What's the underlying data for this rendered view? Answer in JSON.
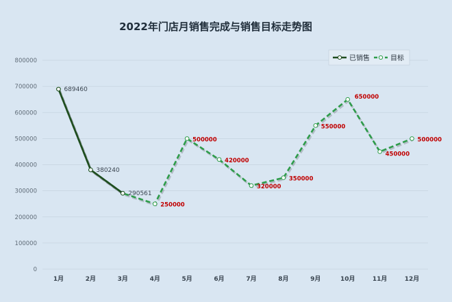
{
  "chart_data": {
    "type": "line",
    "title": "2022年门店月销售完成与销售目标走势图",
    "categories": [
      "1月",
      "2月",
      "3月",
      "4月",
      "5月",
      "6月",
      "7月",
      "8月",
      "9月",
      "10月",
      "11月",
      "12月"
    ],
    "series": [
      {
        "name": "已销售",
        "values": [
          689460,
          380240,
          290561,
          null,
          null,
          null,
          null,
          null,
          null,
          null,
          null,
          null
        ],
        "color": "#1f4d1f",
        "style": "solid",
        "data_labels": [
          "689460",
          "380240",
          "290561"
        ]
      },
      {
        "name": "目标",
        "values": [
          689460,
          380240,
          290561,
          250000,
          500000,
          420000,
          320000,
          350000,
          550000,
          650000,
          450000,
          500000
        ],
        "color": "#2e9c4a",
        "style": "dashed",
        "data_labels": [
          "250000",
          "500000",
          "420000",
          "320000",
          "350000",
          "550000",
          "650000",
          "450000",
          "500000"
        ]
      }
    ],
    "ylim": [
      0,
      800000
    ],
    "yticks": [
      "0",
      "100000",
      "200000",
      "300000",
      "400000",
      "500000",
      "600000",
      "700000",
      "800000"
    ],
    "grid": true,
    "legend_position": "top-right",
    "colors": {
      "background": "#d9e6f2",
      "grid": "#c6d3df",
      "sold_label": "#3a4550",
      "target_label": "#c00000"
    }
  }
}
